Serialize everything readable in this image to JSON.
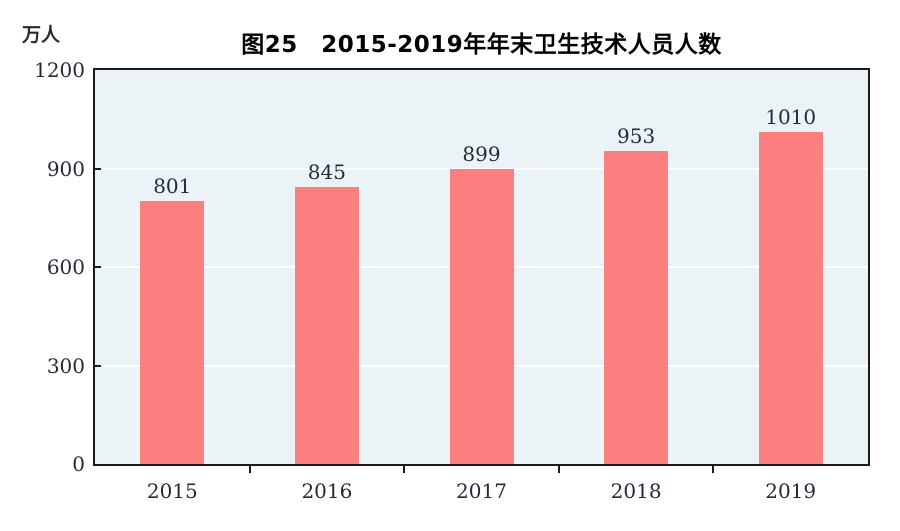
{
  "unit_label": "万人",
  "chart_data": {
    "type": "bar",
    "title": "图25　2015-2019年年末卫生技术人员人数",
    "ylabel": "万人",
    "xlabel": "",
    "categories": [
      "2015",
      "2016",
      "2017",
      "2018",
      "2019"
    ],
    "values": [
      801,
      845,
      899,
      953,
      1010
    ],
    "ylim": [
      0,
      1200
    ],
    "y_ticks": [
      0,
      300,
      600,
      900,
      1200
    ],
    "gridline_values": [
      300,
      600,
      900
    ],
    "legend": "none",
    "grid": "horizontal-white",
    "bar_color": "#fb7f7f",
    "plot_background": "#ecf3f7",
    "grid_color": "#ffffff",
    "axis_color": "#1a1a1a",
    "text_color": "#242b38",
    "title_color": "#000000"
  }
}
